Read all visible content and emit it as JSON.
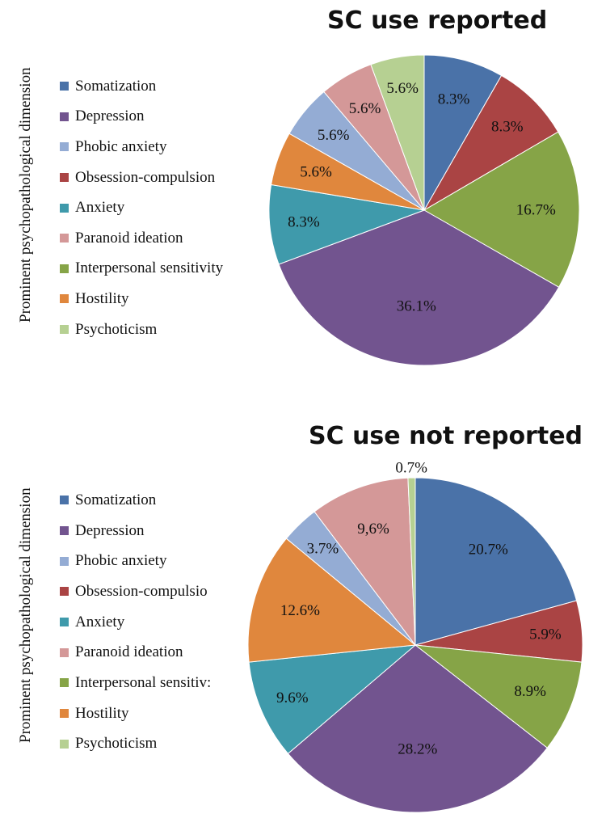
{
  "chart_data": [
    {
      "type": "pie",
      "title": "SC use reported",
      "ylabel": "Prominent psychopathological dimension",
      "legend_position": "left",
      "categories": [
        "Somatization",
        "Depression",
        "Phobic anxiety",
        "Obsession-compulsion",
        "Anxiety",
        "Paranoid ideation",
        "Interpersonal sensitivity",
        "Hostility",
        "Psychoticism"
      ],
      "slices": [
        {
          "name": "Somatization",
          "value": 8.3,
          "label": "8.3%"
        },
        {
          "name": "Obsession-compulsion",
          "value": 8.3,
          "label": "8.3%"
        },
        {
          "name": "Interpersonal sensitivity",
          "value": 16.7,
          "label": "16.7%"
        },
        {
          "name": "Depression",
          "value": 36.1,
          "label": "36.1%"
        },
        {
          "name": "Anxiety",
          "value": 8.3,
          "label": "8.3%"
        },
        {
          "name": "Hostility",
          "value": 5.6,
          "label": "5.6%"
        },
        {
          "name": "Phobic anxiety",
          "value": 5.6,
          "label": "5.6%"
        },
        {
          "name": "Paranoid ideation",
          "value": 5.6,
          "label": "5.6%"
        },
        {
          "name": "Psychoticism",
          "value": 5.6,
          "label": "5.6%"
        }
      ]
    },
    {
      "type": "pie",
      "title": "SC use not reported",
      "ylabel": "Prominent psychopathological dimension",
      "legend_position": "left",
      "categories": [
        "Somatization",
        "Depression",
        "Phobic anxiety",
        "Obsession-compulsio",
        "Anxiety",
        "Paranoid ideation",
        "Interpersonal sensitiv:",
        "Hostility",
        "Psychoticism"
      ],
      "slices": [
        {
          "name": "Somatization",
          "value": 20.7,
          "label": "20.7%"
        },
        {
          "name": "Obsession-compulsion",
          "value": 5.9,
          "label": "5.9%"
        },
        {
          "name": "Interpersonal sensitivity",
          "value": 8.9,
          "label": "8.9%"
        },
        {
          "name": "Depression",
          "value": 28.2,
          "label": "28.2%"
        },
        {
          "name": "Anxiety",
          "value": 9.6,
          "label": "9.6%"
        },
        {
          "name": "Hostility",
          "value": 12.6,
          "label": "12.6%"
        },
        {
          "name": "Phobic anxiety",
          "value": 3.7,
          "label": "3.7%"
        },
        {
          "name": "Paranoid ideation",
          "value": 9.6,
          "label": "9,6%"
        },
        {
          "name": "Psychoticism",
          "value": 0.7,
          "label": "0.7%"
        }
      ]
    }
  ],
  "colors": {
    "Somatization": "#4a72a8",
    "Depression": "#72548f",
    "Phobic anxiety": "#94acd4",
    "Obsession-compulsion": "#aa4444",
    "Anxiety": "#3f9aab",
    "Paranoid ideation": "#d49898",
    "Interpersonal sensitivity": "#86a447",
    "Hostility": "#e0873d",
    "Psychoticism": "#b6d092"
  },
  "legend_color_keys": [
    "Somatization",
    "Depression",
    "Phobic anxiety",
    "Obsession-compulsion",
    "Anxiety",
    "Paranoid ideation",
    "Interpersonal sensitivity",
    "Hostility",
    "Psychoticism"
  ]
}
